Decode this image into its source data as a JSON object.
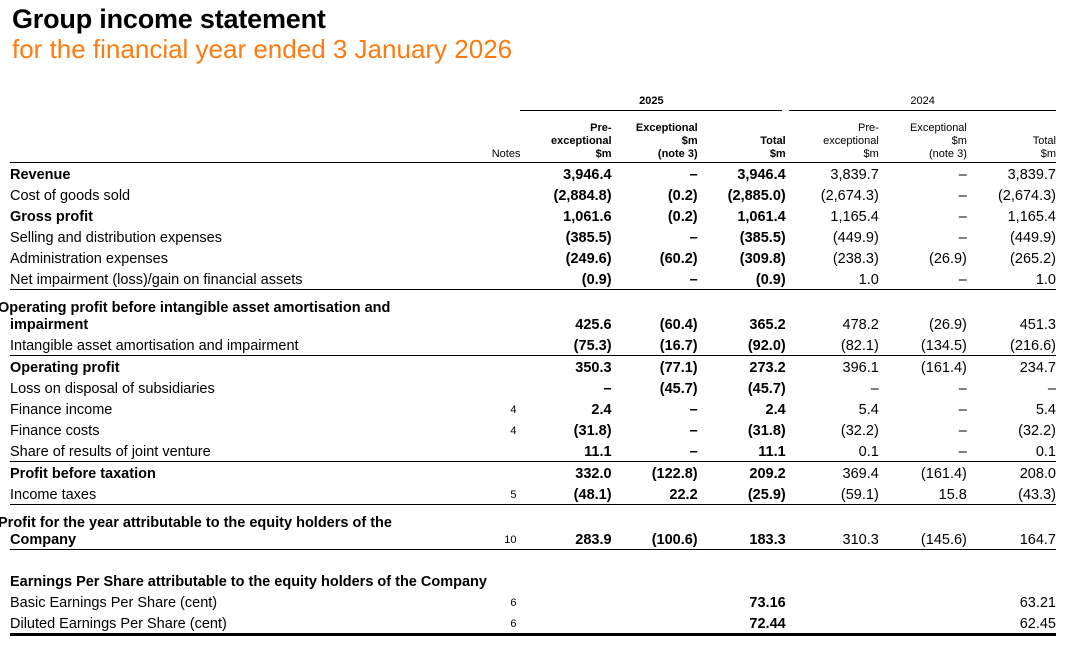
{
  "title": "Group income statement",
  "subtitle": "for the financial year ended 3 January 2026",
  "accent_color": "#ff7a10",
  "years": [
    "2025",
    "2024"
  ],
  "columns": {
    "notes": "Notes",
    "y2025": [
      [
        "Pre-",
        "exceptional",
        "$m"
      ],
      [
        "Exceptional",
        "$m",
        "(note 3)"
      ],
      [
        "Total",
        "$m"
      ]
    ],
    "y2024": [
      [
        "Pre-",
        "exceptional",
        "$m"
      ],
      [
        "Exceptional",
        "$m",
        "(note 3)"
      ],
      [
        "Total",
        "$m"
      ]
    ]
  },
  "rows": [
    {
      "label": "Revenue",
      "note": "",
      "values": [
        "3,946.4",
        "–",
        "3,946.4",
        "3,839.7",
        "–",
        "3,839.7"
      ],
      "style": "total"
    },
    {
      "label": "Cost of goods sold",
      "note": "",
      "values": [
        "(2,884.8)",
        "(0.2)",
        "(2,885.0)",
        "(2,674.3)",
        "–",
        "(2,674.3)"
      ],
      "style": ""
    },
    {
      "label": "Gross profit",
      "note": "",
      "values": [
        "1,061.6",
        "(0.2)",
        "1,061.4",
        "1,165.4",
        "–",
        "1,165.4"
      ],
      "style": "total"
    },
    {
      "label": "Selling and distribution expenses",
      "note": "",
      "values": [
        "(385.5)",
        "–",
        "(385.5)",
        "(449.9)",
        "–",
        "(449.9)"
      ],
      "style": ""
    },
    {
      "label": "Administration expenses",
      "note": "",
      "values": [
        "(249.6)",
        "(60.2)",
        "(309.8)",
        "(238.3)",
        "(26.9)",
        "(265.2)"
      ],
      "style": ""
    },
    {
      "label": "Net impairment (loss)/gain on financial assets",
      "note": "",
      "values": [
        "(0.9)",
        "–",
        "(0.9)",
        "1.0",
        "–",
        "1.0"
      ],
      "style": "line"
    },
    {
      "label": "Operating profit before intangible asset amortisation and impairment",
      "note": "",
      "values": [
        "425.6",
        "(60.4)",
        "365.2",
        "478.2",
        "(26.9)",
        "451.3"
      ],
      "style": "total two"
    },
    {
      "label": "Intangible asset amortisation and impairment",
      "note": "",
      "values": [
        "(75.3)",
        "(16.7)",
        "(92.0)",
        "(82.1)",
        "(134.5)",
        "(216.6)"
      ],
      "style": "line"
    },
    {
      "label": "Operating profit",
      "note": "",
      "values": [
        "350.3",
        "(77.1)",
        "273.2",
        "396.1",
        "(161.4)",
        "234.7"
      ],
      "style": "total"
    },
    {
      "label": "Loss on disposal of subsidiaries",
      "note": "",
      "values": [
        "–",
        "(45.7)",
        "(45.7)",
        "–",
        "–",
        "–"
      ],
      "style": ""
    },
    {
      "label": "Finance income",
      "note": "4",
      "values": [
        "2.4",
        "–",
        "2.4",
        "5.4",
        "–",
        "5.4"
      ],
      "style": ""
    },
    {
      "label": "Finance costs",
      "note": "4",
      "values": [
        "(31.8)",
        "–",
        "(31.8)",
        "(32.2)",
        "–",
        "(32.2)"
      ],
      "style": ""
    },
    {
      "label": "Share of results of joint venture",
      "note": "",
      "values": [
        "11.1",
        "–",
        "11.1",
        "0.1",
        "–",
        "0.1"
      ],
      "style": "line"
    },
    {
      "label": "Profit before taxation",
      "note": "",
      "values": [
        "332.0",
        "(122.8)",
        "209.2",
        "369.4",
        "(161.4)",
        "208.0"
      ],
      "style": "total"
    },
    {
      "label": "Income taxes",
      "note": "5",
      "values": [
        "(48.1)",
        "22.2",
        "(25.9)",
        "(59.1)",
        "15.8",
        "(43.3)"
      ],
      "style": "line"
    },
    {
      "label": "Profit for the year attributable to the equity holders of the Company",
      "note": "10",
      "values": [
        "283.9",
        "(100.6)",
        "183.3",
        "310.3",
        "(145.6)",
        "164.7"
      ],
      "style": "total two line"
    }
  ],
  "eps": {
    "heading": "Earnings Per Share attributable to the equity holders of the Company",
    "rows": [
      {
        "label": "Basic Earnings Per Share (cent)",
        "note": "6",
        "values": [
          "",
          "",
          "73.16",
          "",
          "",
          "63.21"
        ],
        "style": ""
      },
      {
        "label": "Diluted Earnings Per Share (cent)",
        "note": "6",
        "values": [
          "",
          "",
          "72.44",
          "",
          "",
          "62.45"
        ],
        "style": "thick"
      }
    ]
  }
}
